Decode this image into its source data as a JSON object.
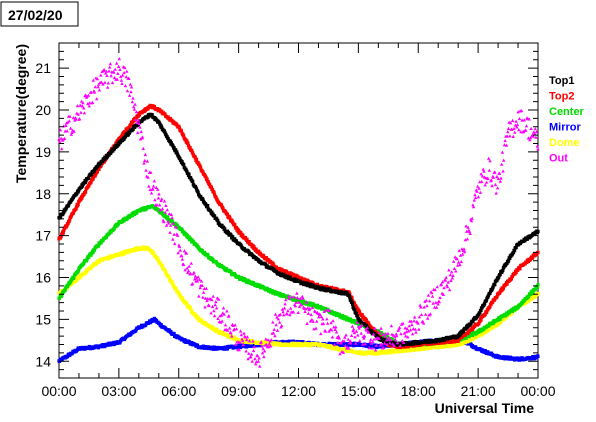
{
  "date_label": "27/02/20",
  "chart_data": {
    "type": "scatter",
    "xlabel": "Universal Time",
    "ylabel": "Temperature(degree)",
    "x_unit": "hours UT",
    "xlim": [
      0,
      24
    ],
    "ylim": [
      13.6,
      21.6
    ],
    "x_ticks": [
      "00:00",
      "03:00",
      "06:00",
      "09:00",
      "12:00",
      "15:00",
      "18:00",
      "21:00",
      "00:00"
    ],
    "y_ticks": [
      "14",
      "15",
      "16",
      "17",
      "18",
      "19",
      "20",
      "21"
    ],
    "legend_position": "right",
    "series": [
      {
        "name": "Top1",
        "color": "#000000",
        "x": [
          0,
          1,
          2,
          3,
          4,
          4.6,
          5,
          6,
          7,
          8,
          9,
          10,
          11,
          12,
          13,
          14.5,
          15,
          16,
          16.5,
          17,
          18,
          19,
          20,
          21,
          22,
          23,
          24
        ],
        "y": [
          17.4,
          18.1,
          18.7,
          19.2,
          19.7,
          19.9,
          19.7,
          18.9,
          18.0,
          17.3,
          16.8,
          16.4,
          16.1,
          15.9,
          15.75,
          15.6,
          15.0,
          14.55,
          14.45,
          14.4,
          14.45,
          14.5,
          14.6,
          15.1,
          16.0,
          16.8,
          17.1
        ]
      },
      {
        "name": "Top2",
        "color": "#ff0000",
        "x": [
          0,
          1,
          2,
          3,
          4,
          4.6,
          5,
          6,
          7,
          8,
          9,
          10,
          11,
          12,
          13,
          14.5,
          15,
          16,
          16.5,
          17,
          18,
          19,
          20,
          21,
          22,
          23,
          24
        ],
        "y": [
          16.9,
          17.8,
          18.6,
          19.3,
          19.9,
          20.1,
          20.0,
          19.6,
          18.7,
          17.8,
          17.1,
          16.6,
          16.2,
          16.0,
          15.8,
          15.65,
          15.2,
          14.6,
          14.4,
          14.35,
          14.4,
          14.45,
          14.5,
          14.9,
          15.6,
          16.2,
          16.6
        ]
      },
      {
        "name": "Center",
        "color": "#00dd00",
        "x": [
          0,
          1,
          2,
          3,
          4,
          4.7,
          5,
          6,
          7,
          8,
          9,
          10,
          11,
          12,
          13,
          14,
          15,
          16,
          17,
          18,
          19,
          20,
          21,
          22,
          23,
          24
        ],
        "y": [
          15.5,
          16.2,
          16.8,
          17.3,
          17.6,
          17.7,
          17.6,
          17.2,
          16.7,
          16.3,
          16.0,
          15.8,
          15.6,
          15.45,
          15.3,
          15.1,
          14.9,
          14.7,
          14.4,
          14.4,
          14.45,
          14.5,
          14.7,
          15.0,
          15.3,
          15.8
        ]
      },
      {
        "name": "Mirror",
        "color": "#0000ff",
        "x": [
          0,
          1,
          2,
          3,
          4,
          4.8,
          5,
          6,
          7,
          8,
          9,
          10,
          11,
          12,
          13,
          14,
          15,
          16,
          17,
          18,
          19,
          20,
          21,
          22,
          23,
          24
        ],
        "y": [
          14.0,
          14.3,
          14.35,
          14.45,
          14.8,
          15.0,
          14.9,
          14.55,
          14.35,
          14.3,
          14.35,
          14.4,
          14.45,
          14.45,
          14.4,
          14.4,
          14.4,
          14.35,
          14.4,
          14.45,
          14.5,
          14.55,
          14.3,
          14.1,
          14.05,
          14.1
        ]
      },
      {
        "name": "Dome",
        "color": "#ffff00",
        "x": [
          0,
          1,
          2,
          3,
          4,
          4.5,
          5,
          6,
          7,
          8,
          9,
          10,
          11,
          12,
          13,
          14,
          15,
          16,
          17,
          18,
          19,
          20,
          21,
          22,
          23,
          24
        ],
        "y": [
          15.6,
          16.0,
          16.4,
          16.55,
          16.7,
          16.7,
          16.4,
          15.6,
          15.0,
          14.7,
          14.5,
          14.45,
          14.4,
          14.4,
          14.4,
          14.3,
          14.2,
          14.2,
          14.25,
          14.3,
          14.35,
          14.4,
          14.6,
          14.9,
          15.3,
          15.6
        ]
      },
      {
        "name": "Out",
        "color": "#ff00ff",
        "x": [
          0,
          0.5,
          1,
          1.5,
          2,
          2.5,
          3,
          3.5,
          4,
          4.5,
          5,
          5.5,
          6,
          6.5,
          7,
          7.5,
          8,
          8.5,
          9,
          9.5,
          10,
          10.5,
          11,
          11.5,
          12,
          12.5,
          13,
          13.5,
          14,
          14.5,
          15,
          15.5,
          16,
          16.5,
          17,
          17.5,
          18,
          18.5,
          19,
          19.5,
          20,
          20.5,
          21,
          21.5,
          22,
          22.5,
          23,
          23.5,
          24
        ],
        "y": [
          19.2,
          19.6,
          19.9,
          20.3,
          20.6,
          20.8,
          21.0,
          20.6,
          19.6,
          18.4,
          17.8,
          17.4,
          16.8,
          16.2,
          15.8,
          15.4,
          15.2,
          14.9,
          14.5,
          14.3,
          14.1,
          14.5,
          15.0,
          15.3,
          15.4,
          15.1,
          14.9,
          15.0,
          14.4,
          14.5,
          14.7,
          14.6,
          14.5,
          14.55,
          14.6,
          14.7,
          15.0,
          15.3,
          15.6,
          15.9,
          16.4,
          17.1,
          18.1,
          18.6,
          18.2,
          19.4,
          19.8,
          19.6,
          19.2
        ]
      }
    ]
  }
}
